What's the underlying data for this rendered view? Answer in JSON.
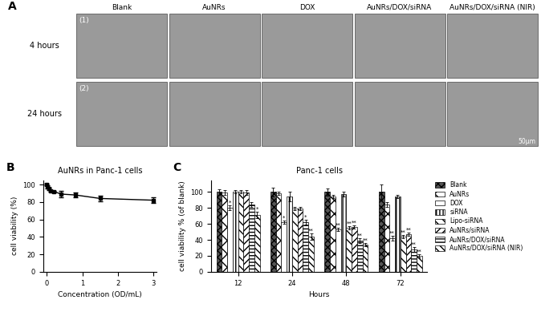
{
  "panels": [
    "A",
    "B",
    "C"
  ],
  "image_grid": {
    "columns": [
      "Blank",
      "AuNRs",
      "DOX",
      "AuNRs/DOX/siRNA",
      "AuNRs/DOX/siRNA (NIR)"
    ],
    "rows": [
      "4 hours",
      "24 hours"
    ],
    "row_markers": [
      "(1)",
      "(2)"
    ],
    "scale_bar": "50μm"
  },
  "chart_data": [
    {
      "type": "line",
      "title": "AuNRs in Panc-1 cells",
      "x_label": "Concentration (OD/mL)",
      "y_label": "cell viability (%)",
      "x": [
        0,
        0.025,
        0.05,
        0.1,
        0.2,
        0.4,
        0.8,
        1.5,
        3
      ],
      "values": [
        100,
        97,
        95,
        93,
        92,
        89,
        88,
        84,
        82
      ],
      "errors": [
        1,
        2,
        1,
        1,
        1,
        4,
        3,
        3,
        3
      ],
      "color": "#000000",
      "marker": "square",
      "line_style": "solid",
      "xlim": [
        -0.1,
        3.1
      ],
      "xticks": [
        0,
        1,
        2,
        3
      ],
      "ylim": [
        0,
        105
      ],
      "yticks": [
        0,
        20,
        40,
        60,
        80,
        100
      ]
    },
    {
      "type": "bar",
      "title": "Panc-1 cells",
      "x_label": "Hours",
      "y_label": "cell viability % (of blank)",
      "categories": [
        "12",
        "24",
        "48",
        "72"
      ],
      "series": [
        {
          "name": "Blank",
          "color": "#555555",
          "values": [
            100,
            100,
            100,
            100
          ],
          "errors": [
            4,
            6,
            5,
            10
          ],
          "significance": [
            null,
            null,
            null,
            null
          ]
        },
        {
          "name": "AuNRs",
          "color": "#ffffff",
          "values": [
            99,
            98,
            94,
            84
          ],
          "errors": [
            3,
            2,
            2,
            3
          ],
          "significance": [
            null,
            null,
            null,
            null
          ]
        },
        {
          "name": "DOX",
          "color": "#ffffff",
          "values": [
            80,
            62,
            53,
            42
          ],
          "errors": [
            3,
            2,
            2,
            3
          ],
          "significance": [
            "*",
            "*",
            "**",
            "**"
          ]
        },
        {
          "name": "siRNA",
          "color": "#ffffff",
          "values": [
            100,
            94,
            97,
            94
          ],
          "errors": [
            2,
            6,
            3,
            2
          ],
          "significance": [
            null,
            null,
            null,
            null
          ]
        },
        {
          "name": "Lipo-siRNA",
          "color": "#ffffff",
          "values": [
            100,
            79,
            55,
            44
          ],
          "errors": [
            2,
            2,
            2,
            2
          ],
          "significance": [
            null,
            null,
            "**",
            "**"
          ]
        },
        {
          "name": "AuNRs/siRNA",
          "color": "#ffffff",
          "values": [
            99,
            79,
            56,
            47
          ],
          "errors": [
            3,
            2,
            2,
            2
          ],
          "significance": [
            null,
            null,
            "**",
            "**"
          ]
        },
        {
          "name": "AuNRs/DOX/siRNA",
          "color": "#ffffff",
          "values": [
            84,
            62,
            39,
            28
          ],
          "errors": [
            3,
            3,
            3,
            3
          ],
          "significance": [
            null,
            "*",
            "**",
            "**"
          ]
        },
        {
          "name": "AuNRs/DOX/siRNA (NIR)",
          "color": "#ffffff",
          "values": [
            71,
            44,
            34,
            20
          ],
          "errors": [
            4,
            4,
            2,
            2
          ],
          "significance": [
            "*",
            "**",
            "**",
            "**"
          ]
        }
      ],
      "ylim": [
        0,
        115
      ],
      "yticks": [
        0,
        20,
        40,
        60,
        80,
        100
      ],
      "legend": "right"
    }
  ]
}
